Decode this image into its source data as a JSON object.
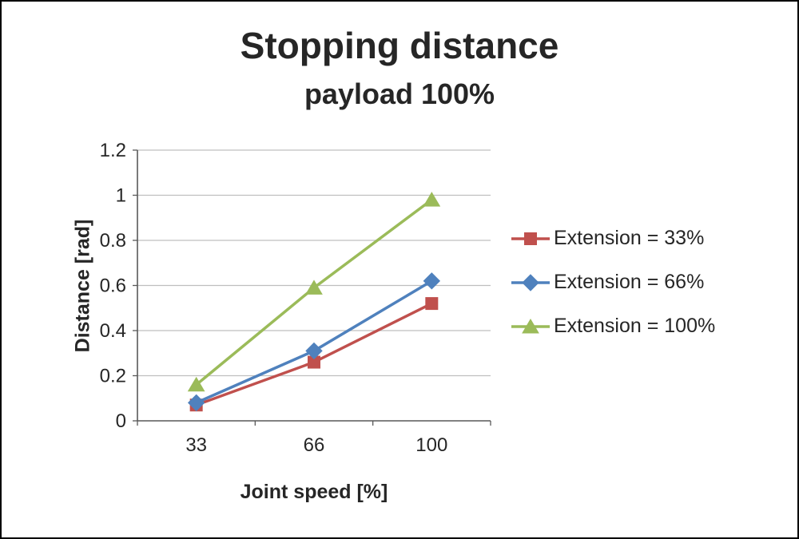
{
  "chart_data": {
    "type": "line",
    "title": "Stopping distance",
    "subtitle": "payload 100%",
    "xlabel": "Joint speed [%]",
    "ylabel": "Distance [rad]",
    "categories": [
      "33",
      "66",
      "100"
    ],
    "ylim": [
      0,
      1.2
    ],
    "ytick_step": 0.2,
    "yticks": [
      "0",
      "0.2",
      "0.4",
      "0.6",
      "0.8",
      "1",
      "1.2"
    ],
    "grid": "horizontal",
    "legend_position": "right",
    "colors": {
      "grid": "#BFBFBF",
      "axis": "#595959",
      "text": "#262626"
    },
    "series": [
      {
        "name": "Extension = 33%",
        "color": "#C0504D",
        "marker": "square",
        "values": [
          0.07,
          0.26,
          0.52
        ]
      },
      {
        "name": "Extension = 66%",
        "color": "#4F81BD",
        "marker": "diamond",
        "values": [
          0.08,
          0.31,
          0.62
        ]
      },
      {
        "name": "Extension = 100%",
        "color": "#9BBB59",
        "marker": "triangle",
        "values": [
          0.16,
          0.59,
          0.98
        ]
      }
    ]
  }
}
